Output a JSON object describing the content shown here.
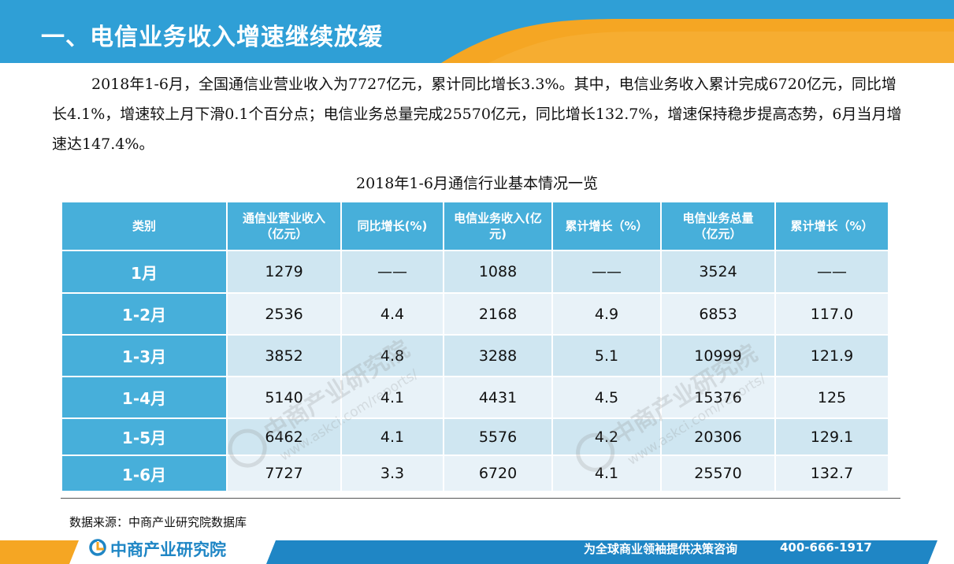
{
  "header": {
    "title": "一、电信业务收入增速继续放缓"
  },
  "intro": {
    "text": "2018年1-6月，全国通信业营业收入为7727亿元，累计同比增长3.3%。其中，电信业务收入累计完成6720亿元，同比增长4.1%，增速较上月下滑0.1个百分点；电信业务总量完成25570亿元，同比增长132.7%，增速保持稳步提高态势，6月当月增速达147.4%。"
  },
  "table": {
    "caption": "2018年1-6月通信行业基本情况一览",
    "headers": [
      [
        "类别"
      ],
      [
        "通信业营业收入",
        "（亿元）"
      ],
      [
        "同比增长(%)"
      ],
      [
        "电信业务收入(亿",
        "元)"
      ],
      [
        "累计增长（%）"
      ],
      [
        "电信业务总量",
        "（亿元）"
      ],
      [
        "累计增长（%）"
      ]
    ],
    "rows": [
      [
        "1月",
        "1279",
        "——",
        "1088",
        "——",
        "3524",
        "——"
      ],
      [
        "1-2月",
        "2536",
        "4.4",
        "2168",
        "4.9",
        "6853",
        "117.0"
      ],
      [
        "1-3月",
        "3852",
        "4.8",
        "3288",
        "5.1",
        "10999",
        "121.9"
      ],
      [
        "1-4月",
        "5140",
        "4.1",
        "4431",
        "4.5",
        "15376",
        "125"
      ],
      [
        "1-5月",
        "6462",
        "4.1",
        "5576",
        "4.2",
        "20306",
        "129.1"
      ],
      [
        "1-6月",
        "7727",
        "3.3",
        "6720",
        "4.1",
        "25570",
        "132.7"
      ]
    ]
  },
  "source": "数据来源：中商产业研究院数据库",
  "watermark": {
    "brand": "中商产业研究院",
    "url": "www.askci.com/reports/"
  },
  "footer": {
    "logo_icon": "askci-logo-icon",
    "logo_text": "中商产业研究院",
    "slogan": "为全球商业领袖提供决策咨询",
    "phone": "400-666-1917"
  },
  "colors": {
    "header_blue": "#2f9fd6",
    "accent_orange": "#f5a623",
    "table_header": "#47afda",
    "row_light": "#e8f2f8",
    "row_mid": "#cfe6f1"
  }
}
